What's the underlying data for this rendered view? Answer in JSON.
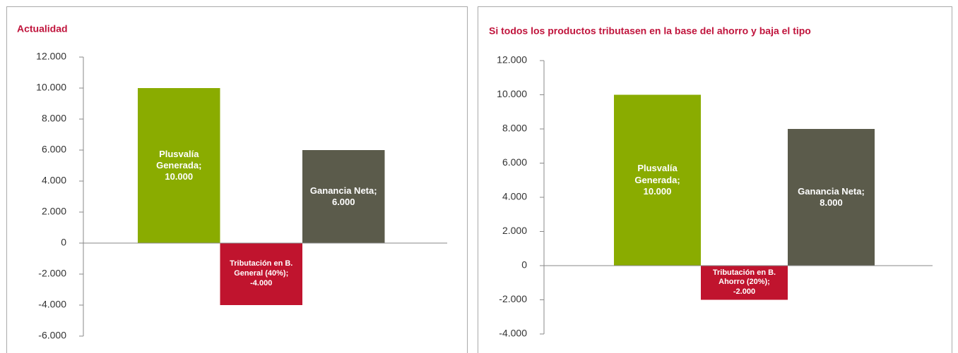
{
  "chart_data": [
    {
      "type": "bar",
      "title": "Actualidad",
      "categories": [
        "Plusvalía Generada;",
        "Tributación  en B. General (40%);",
        "Ganancia Neta;"
      ],
      "values": [
        10000,
        -4000,
        6000
      ],
      "value_labels": [
        "10.000",
        "-4.000",
        "6.000"
      ],
      "colors": [
        "#8aac00",
        "#c0142e",
        "#5b5b4b"
      ],
      "ylim": [
        -6000,
        12000
      ],
      "yticks": [
        {
          "value": -6000,
          "label": "-6.000"
        },
        {
          "value": -4000,
          "label": "-4.000"
        },
        {
          "value": -2000,
          "label": "-2.000"
        },
        0,
        {
          "value": 2000,
          "label": "2.000"
        },
        {
          "value": 4000,
          "label": "4.000"
        },
        {
          "value": 6000,
          "label": "6.000"
        },
        {
          "value": 8000,
          "label": "8.000"
        },
        {
          "value": 10000,
          "label": "10.000"
        },
        {
          "value": 12000,
          "label": "12.000"
        }
      ]
    },
    {
      "type": "bar",
      "title": "Si todos los productos tributasen en la base del ahorro y baja el tipo",
      "categories": [
        "Plusvalía Generada;",
        "Tributación  en B. Ahorro (20%);",
        "Ganancia Neta;"
      ],
      "values": [
        10000,
        -2000,
        8000
      ],
      "value_labels": [
        "10.000",
        "-2.000",
        "8.000"
      ],
      "colors": [
        "#8aac00",
        "#c0142e",
        "#5b5b4b"
      ],
      "ylim": [
        -4000,
        12000
      ],
      "yticks": [
        {
          "value": -4000,
          "label": "-4.000"
        },
        {
          "value": -2000,
          "label": "-2.000"
        },
        0,
        {
          "value": 2000,
          "label": "2.000"
        },
        {
          "value": 4000,
          "label": "4.000"
        },
        {
          "value": 6000,
          "label": "6.000"
        },
        {
          "value": 8000,
          "label": "8.000"
        },
        {
          "value": 10000,
          "label": "10.000"
        },
        {
          "value": 12000,
          "label": "12.000"
        }
      ]
    }
  ]
}
